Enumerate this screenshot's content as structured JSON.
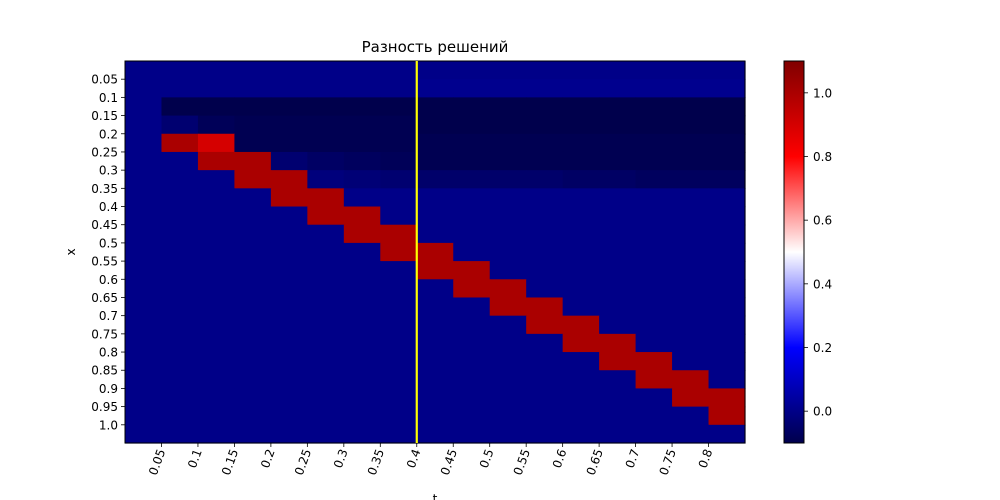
{
  "chart_data": {
    "type": "heatmap",
    "title": "Разность решений",
    "xlabel": "t",
    "ylabel": "x",
    "x_tick_labels": [
      "0.05",
      "0.1",
      "0.15",
      "0.2",
      "0.25",
      "0.3",
      "0.35",
      "0.4",
      "0.45",
      "0.5",
      "0.55",
      "0.6",
      "0.65",
      "0.7",
      "0.75",
      "0.8"
    ],
    "y_tick_labels": [
      "0.05",
      "0.1",
      "0.15",
      "0.2",
      "0.25",
      "0.3",
      "0.35",
      "0.4",
      "0.45",
      "0.5",
      "0.55",
      "0.6",
      "0.65",
      "0.7",
      "0.75",
      "0.8",
      "0.85",
      "0.9",
      "0.95",
      "1.0"
    ],
    "colormap": "seismic",
    "color_range": [
      -0.1,
      1.1
    ],
    "colorbar_ticks": [
      "0.0",
      "0.2",
      "0.4",
      "0.6",
      "0.8",
      "1.0"
    ],
    "marker_line": {
      "t": "0.4",
      "color": "#ffff00"
    },
    "values": [
      [
        0,
        0,
        0,
        0,
        0,
        0,
        0,
        0,
        0,
        0,
        0,
        0,
        0,
        0,
        0,
        0,
        0
      ],
      [
        0,
        0,
        0,
        0,
        0,
        0,
        0,
        0,
        0.01,
        0.01,
        0.01,
        0.01,
        0.01,
        0.01,
        0.01,
        0.01,
        0.01
      ],
      [
        0,
        -0.1,
        -0.1,
        -0.1,
        -0.1,
        -0.1,
        -0.1,
        -0.1,
        -0.1,
        -0.1,
        -0.1,
        -0.1,
        -0.1,
        -0.1,
        -0.1,
        -0.1,
        -0.1
      ],
      [
        0,
        -0.04,
        -0.08,
        -0.09,
        -0.09,
        -0.09,
        -0.09,
        -0.09,
        -0.1,
        -0.1,
        -0.1,
        -0.1,
        -0.1,
        -0.1,
        -0.1,
        -0.1,
        -0.1
      ],
      [
        0,
        1.0,
        0.9,
        -0.09,
        -0.09,
        -0.09,
        -0.09,
        -0.09,
        -0.09,
        -0.09,
        -0.09,
        -0.09,
        -0.09,
        -0.09,
        -0.09,
        -0.09,
        -0.09
      ],
      [
        0,
        0,
        1.0,
        1.0,
        -0.04,
        -0.06,
        -0.07,
        -0.08,
        -0.09,
        -0.09,
        -0.09,
        -0.09,
        -0.09,
        -0.09,
        -0.09,
        -0.09,
        -0.09
      ],
      [
        0,
        0,
        0,
        1.0,
        1.0,
        -0.02,
        -0.03,
        -0.04,
        -0.05,
        -0.05,
        -0.05,
        -0.05,
        -0.06,
        -0.06,
        -0.07,
        -0.07,
        -0.07
      ],
      [
        0,
        0,
        0,
        0,
        1.0,
        1.0,
        0,
        0,
        0,
        0,
        0,
        0,
        0,
        0,
        0,
        0,
        0
      ],
      [
        0,
        0,
        0,
        0,
        0,
        1.0,
        1.0,
        0,
        0,
        0,
        0,
        0,
        0,
        0,
        0,
        0,
        0
      ],
      [
        0,
        0,
        0,
        0,
        0,
        0,
        1.0,
        1.0,
        0,
        0,
        0,
        0,
        0,
        0,
        0,
        0,
        0
      ],
      [
        0,
        0,
        0,
        0,
        0,
        0,
        0,
        1.0,
        1.0,
        0,
        0,
        0,
        0,
        0,
        0,
        0,
        0
      ],
      [
        0,
        0,
        0,
        0,
        0,
        0,
        0,
        0,
        1.0,
        1.0,
        0,
        0,
        0,
        0,
        0,
        0,
        0
      ],
      [
        0,
        0,
        0,
        0,
        0,
        0,
        0,
        0,
        0,
        1.0,
        1.0,
        0,
        0,
        0,
        0,
        0,
        0
      ],
      [
        0,
        0,
        0,
        0,
        0,
        0,
        0,
        0,
        0,
        0,
        1.0,
        1.0,
        0,
        0,
        0,
        0,
        0
      ],
      [
        0,
        0,
        0,
        0,
        0,
        0,
        0,
        0,
        0,
        0,
        0,
        1.0,
        1.0,
        0,
        0,
        0,
        0
      ],
      [
        0,
        0,
        0,
        0,
        0,
        0,
        0,
        0,
        0,
        0,
        0,
        0,
        1.0,
        1.0,
        0,
        0,
        0
      ],
      [
        0,
        0,
        0,
        0,
        0,
        0,
        0,
        0,
        0,
        0,
        0,
        0,
        0,
        1.0,
        1.0,
        0,
        0
      ],
      [
        0,
        0,
        0,
        0,
        0,
        0,
        0,
        0,
        0,
        0,
        0,
        0,
        0,
        0,
        1.0,
        1.0,
        0
      ],
      [
        0,
        0,
        0,
        0,
        0,
        0,
        0,
        0,
        0,
        0,
        0,
        0,
        0,
        0,
        0,
        1.0,
        1.0
      ],
      [
        0,
        0,
        0,
        0,
        0,
        0,
        0,
        0,
        0,
        0,
        0,
        0,
        0,
        0,
        0,
        0,
        1.0
      ],
      [
        0,
        0,
        0,
        0,
        0,
        0,
        0,
        0,
        0,
        0,
        0,
        0,
        0,
        0,
        0,
        0,
        0
      ]
    ]
  }
}
